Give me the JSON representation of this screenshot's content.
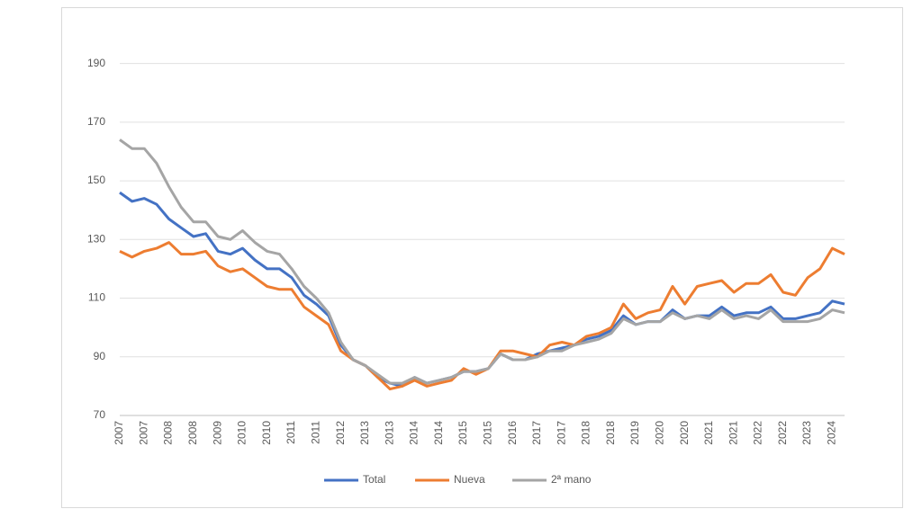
{
  "chart_data": {
    "type": "line",
    "categories": [
      "2007",
      null,
      "2007",
      null,
      "2008",
      null,
      "2008",
      null,
      "2009",
      null,
      "2010",
      null,
      "2010",
      null,
      "2011",
      null,
      "2011",
      null,
      "2012",
      null,
      "2013",
      null,
      "2013",
      null,
      "2014",
      null,
      "2014",
      null,
      "2015",
      null,
      "2015",
      null,
      "2016",
      null,
      "2017",
      null,
      "2017",
      null,
      "2018",
      null,
      "2018",
      null,
      "2019",
      null,
      "2020",
      null,
      "2020",
      null,
      "2021",
      null,
      "2021",
      null,
      "2022",
      null,
      "2022",
      null,
      "2023",
      null,
      "2024",
      null
    ],
    "series": [
      {
        "name": "Total",
        "color": "#4472c4",
        "values": [
          146,
          143,
          144,
          142,
          137,
          134,
          131,
          132,
          126,
          125,
          127,
          123,
          120,
          120,
          117,
          111,
          108,
          104,
          94,
          89,
          87,
          83,
          81,
          80,
          83,
          81,
          82,
          83,
          85,
          85,
          86,
          91,
          89,
          89,
          91,
          92,
          93,
          94,
          96,
          97,
          99,
          104,
          101,
          102,
          102,
          106,
          103,
          104,
          104,
          107,
          104,
          105,
          105,
          107,
          103,
          103,
          104,
          105,
          109,
          108
        ]
      },
      {
        "name": "Nueva",
        "color": "#ed7d31",
        "values": [
          126,
          124,
          126,
          127,
          129,
          125,
          125,
          126,
          121,
          119,
          120,
          117,
          114,
          113,
          113,
          107,
          104,
          101,
          92,
          89,
          87,
          83,
          79,
          80,
          82,
          80,
          81,
          82,
          86,
          84,
          86,
          92,
          92,
          91,
          90,
          94,
          95,
          94,
          97,
          98,
          100,
          108,
          103,
          105,
          106,
          114,
          108,
          114,
          115,
          116,
          112,
          115,
          115,
          118,
          112,
          111,
          117,
          120,
          127,
          125
        ]
      },
      {
        "name": "2ª mano",
        "color": "#a5a5a5",
        "values": [
          164,
          161,
          161,
          156,
          148,
          141,
          136,
          136,
          131,
          130,
          133,
          129,
          126,
          125,
          120,
          114,
          110,
          105,
          95,
          89,
          87,
          84,
          81,
          81,
          83,
          81,
          82,
          83,
          85,
          85,
          86,
          91,
          89,
          89,
          90,
          92,
          92,
          94,
          95,
          96,
          98,
          103,
          101,
          102,
          102,
          105,
          103,
          104,
          103,
          106,
          103,
          104,
          103,
          106,
          102,
          102,
          102,
          103,
          106,
          105
        ]
      }
    ],
    "ylim": [
      70,
      200
    ],
    "yticks": [
      70,
      90,
      110,
      130,
      150,
      170,
      190
    ],
    "grid": true,
    "legend": "bottom"
  }
}
